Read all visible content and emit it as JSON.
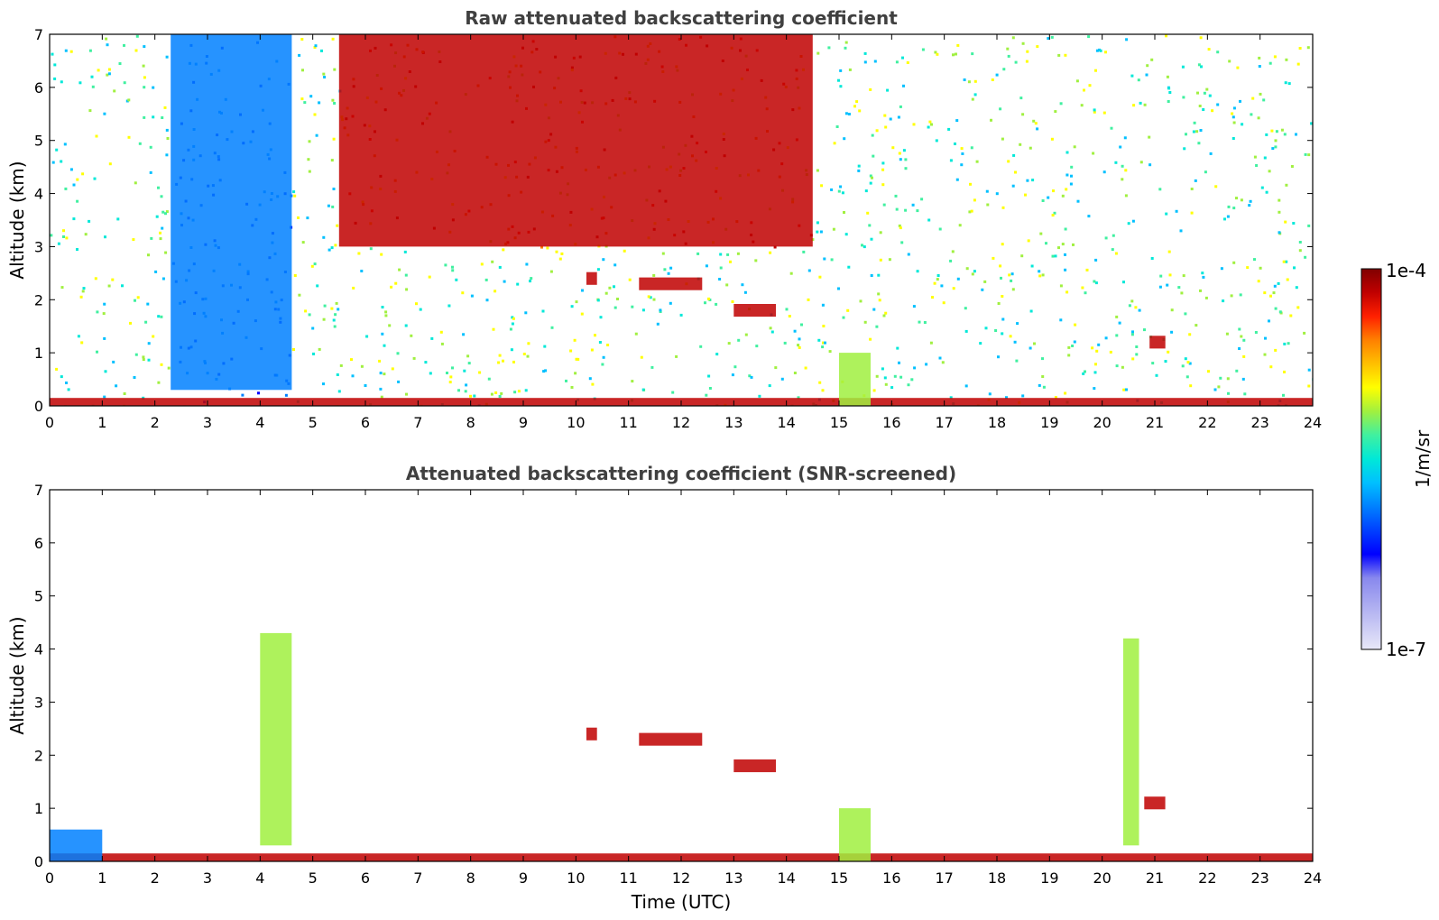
{
  "colorbar": {
    "label": "1/m/sr",
    "max_label": "1e-4",
    "min_label": "1e-7",
    "colors": [
      "#e8e8f8",
      "#c8c8f4",
      "#a8a8f0",
      "#8888ee",
      "#0000ff",
      "#0040ff",
      "#0080ff",
      "#00c0ff",
      "#00e8d8",
      "#40f0a0",
      "#a0f040",
      "#ffff00",
      "#ffc000",
      "#ff8000",
      "#ff2000",
      "#c00000",
      "#800000"
    ]
  },
  "chart_data": [
    {
      "type": "heatmap",
      "title": "Raw attenuated backscattering coefficient",
      "xlabel": "",
      "ylabel": "Altitude (km)",
      "xlim": [
        0,
        24
      ],
      "ylim": [
        0,
        7
      ],
      "xticks": [
        0,
        1,
        2,
        3,
        4,
        5,
        6,
        7,
        8,
        9,
        10,
        11,
        12,
        13,
        14,
        15,
        16,
        17,
        18,
        19,
        20,
        21,
        22,
        23,
        24
      ],
      "yticks": [
        0,
        1,
        2,
        3,
        4,
        5,
        6,
        7
      ],
      "colorscale": "log, 1e-7 to 1e-4 1/m/sr",
      "features": [
        {
          "kind": "surface layer",
          "x_start": 0,
          "x_end": 24,
          "y_top": 0.15,
          "level": "high"
        },
        {
          "kind": "noisy background",
          "x_start": 5.5,
          "x_end": 14.5,
          "y_bottom": 3.0,
          "y_top": 7.0,
          "level": "high"
        },
        {
          "kind": "low-signal columns",
          "x_start": 2.3,
          "x_end": 4.6,
          "y_bottom": 0.3,
          "y_top": 7.0,
          "level": "low"
        },
        {
          "kind": "cloud",
          "x_start": 10.2,
          "x_end": 10.4,
          "altitude": 2.4,
          "level": "high"
        },
        {
          "kind": "cloud",
          "x_start": 11.2,
          "x_end": 12.4,
          "altitude": 2.3,
          "level": "high"
        },
        {
          "kind": "cloud",
          "x_start": 13.0,
          "x_end": 13.8,
          "altitude": 1.8,
          "level": "high"
        },
        {
          "kind": "cloud",
          "x_start": 20.9,
          "x_end": 21.2,
          "altitude": 1.2,
          "level": "high"
        },
        {
          "kind": "aerosol column",
          "x_start": 15.0,
          "x_end": 15.6,
          "y_bottom": 0.0,
          "y_top": 1.0,
          "level": "medium"
        }
      ]
    },
    {
      "type": "heatmap",
      "title": "Attenuated backscattering coefficient (SNR-screened)",
      "xlabel": "Time (UTC)",
      "ylabel": "Altitude (km)",
      "xlim": [
        0,
        24
      ],
      "ylim": [
        0,
        7
      ],
      "xticks": [
        0,
        1,
        2,
        3,
        4,
        5,
        6,
        7,
        8,
        9,
        10,
        11,
        12,
        13,
        14,
        15,
        16,
        17,
        18,
        19,
        20,
        21,
        22,
        23,
        24
      ],
      "yticks": [
        0,
        1,
        2,
        3,
        4,
        5,
        6,
        7
      ],
      "colorscale": "log, 1e-7 to 1e-4 1/m/sr",
      "features": [
        {
          "kind": "surface layer",
          "x_start": 0,
          "x_end": 24,
          "y_top": 0.15,
          "level": "high"
        },
        {
          "kind": "low aerosol layer",
          "x_start": 0,
          "x_end": 1.0,
          "y_bottom": 0.0,
          "y_top": 0.6,
          "level": "low"
        },
        {
          "kind": "aerosol plume",
          "x_start": 4.0,
          "x_end": 4.6,
          "y_bottom": 0.3,
          "y_top": 4.3,
          "level": "medium"
        },
        {
          "kind": "aerosol plume",
          "x_start": 20.4,
          "x_end": 20.7,
          "y_bottom": 0.3,
          "y_top": 4.2,
          "level": "medium"
        },
        {
          "kind": "cloud",
          "x_start": 10.2,
          "x_end": 10.4,
          "altitude": 2.4,
          "level": "high"
        },
        {
          "kind": "cloud",
          "x_start": 11.2,
          "x_end": 12.4,
          "altitude": 2.3,
          "level": "high"
        },
        {
          "kind": "cloud",
          "x_start": 13.0,
          "x_end": 13.8,
          "altitude": 1.8,
          "level": "high"
        },
        {
          "kind": "cloud",
          "x_start": 20.8,
          "x_end": 21.2,
          "altitude": 1.1,
          "level": "high"
        },
        {
          "kind": "aerosol column",
          "x_start": 15.0,
          "x_end": 15.6,
          "y_bottom": 0.0,
          "y_top": 1.0,
          "level": "medium"
        }
      ]
    }
  ]
}
